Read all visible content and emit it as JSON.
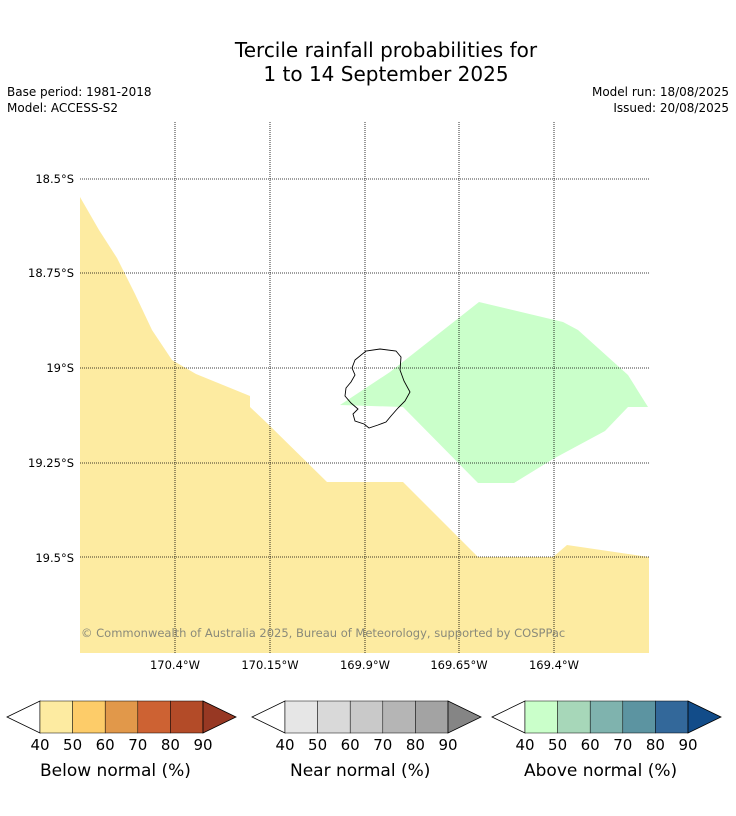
{
  "title": {
    "line1": "Tercile rainfall probabilities for",
    "line2": "1 to 14 September 2025"
  },
  "meta": {
    "base_period": "Base period: 1981-2018",
    "model": "Model: ACCESS-S2",
    "model_run": "Model run: 18/08/2025",
    "issued": "Issued: 20/08/2025"
  },
  "map": {
    "region": "Niue",
    "lat_labels": [
      "18.5°S",
      "18.75°S",
      "19°S",
      "19.25°S",
      "19.5°S"
    ],
    "lon_labels": [
      "170.4°W",
      "170.15°W",
      "169.9°W",
      "169.65°W",
      "169.4°W"
    ],
    "copyright": "© Commonwealth of Australia 2025, Bureau of Meteorology, supported by COSPPac",
    "colors": {
      "below_normal_40_50": "#fdeba1",
      "above_normal_40_50": "#caffca",
      "land_outline": "#000000",
      "background": "#ffffff"
    }
  },
  "legends": [
    {
      "title": "Below normal (%)",
      "ticks": [
        "40",
        "50",
        "60",
        "70",
        "80",
        "90"
      ],
      "colors": [
        "#fdeba1",
        "#fdcc69",
        "#e1984a",
        "#cd6233",
        "#b34b28",
        "#973823"
      ]
    },
    {
      "title": "Near normal (%)",
      "ticks": [
        "40",
        "50",
        "60",
        "70",
        "80",
        "90"
      ],
      "colors": [
        "#e6e6e6",
        "#d9d9d9",
        "#c9c9c9",
        "#b5b5b5",
        "#a3a3a3",
        "#858585"
      ]
    },
    {
      "title": "Above normal (%)",
      "ticks": [
        "40",
        "50",
        "60",
        "70",
        "80",
        "90"
      ],
      "colors": [
        "#caffca",
        "#a7d7b9",
        "#7fb3ae",
        "#5c94a1",
        "#33689a",
        "#124c89"
      ]
    }
  ]
}
